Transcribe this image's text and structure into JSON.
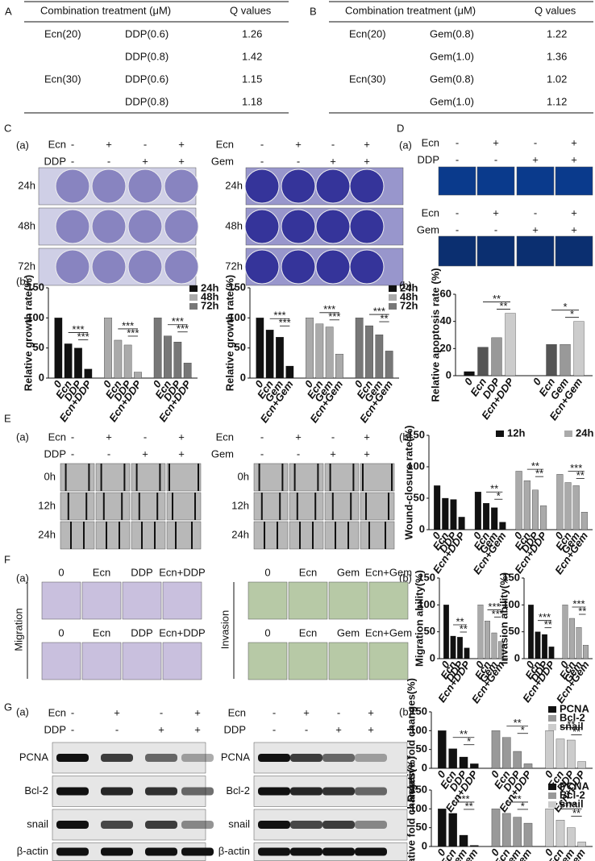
{
  "panels": {
    "A": {
      "label": "A",
      "table": {
        "headers": [
          "Combination treatment (μM)",
          "Q values"
        ],
        "rows": [
          [
            "Ecn(20)",
            "DDP(0.6)",
            1.26
          ],
          [
            null,
            "DDP(0.8)",
            1.42
          ],
          [
            "Ecn(30)",
            "DDP(0.6)",
            1.15
          ],
          [
            null,
            "DDP(0.8)",
            1.18
          ]
        ]
      }
    },
    "B": {
      "label": "B",
      "table": {
        "headers": [
          "Combination treatment (μM)",
          "Q values"
        ],
        "rows": [
          [
            "Ecn(20)",
            "Gem(0.8)",
            1.22
          ],
          [
            null,
            "Gem(1.0)",
            1.36
          ],
          [
            "Ecn(30)",
            "Gem(0.8)",
            1.02
          ],
          [
            null,
            "Gem(1.0)",
            1.12
          ]
        ]
      }
    },
    "C": {
      "label": "C",
      "sub_a": "(a)",
      "sub_b": "(b)",
      "treatments": [
        {
          "rows": [
            {
              "name": "Ecn",
              "marks": [
                "-",
                "+",
                "-",
                "+"
              ]
            },
            {
              "name": "DDP",
              "marks": [
                "-",
                "-",
                "+",
                "+"
              ]
            }
          ],
          "times": [
            "24h",
            "48h",
            "72h"
          ]
        },
        {
          "rows": [
            {
              "name": "Ecn",
              "marks": [
                "-",
                "+",
                "-",
                "+"
              ]
            },
            {
              "name": "Gem",
              "marks": [
                "-",
                "-",
                "+",
                "+"
              ]
            }
          ],
          "times": [
            "24h",
            "48h",
            "72h"
          ]
        }
      ],
      "charts": [
        {
          "y_label": "Relative growth rate(%)",
          "ylim": [
            0,
            150
          ],
          "yticks": [
            0,
            50,
            100,
            150
          ],
          "legend": [
            {
              "name": "24h",
              "color": "#111"
            },
            {
              "name": "48h",
              "color": "#aaa"
            },
            {
              "name": "72h",
              "color": "#777"
            }
          ],
          "groups": [
            {
              "color": "#111",
              "categories": [
                "0",
                "Ecn",
                "DDP",
                "Ecn+DDP"
              ],
              "values": [
                100,
                57,
                50,
                15
              ],
              "sig": [
                "***",
                "***"
              ]
            },
            {
              "color": "#aaa",
              "categories": [
                "0",
                "Ecn",
                "DDP",
                "Ecn+DDP"
              ],
              "values": [
                100,
                63,
                55,
                10
              ],
              "sig": [
                "***",
                "***"
              ]
            },
            {
              "color": "#777",
              "categories": [
                "0",
                "Ecn",
                "DDP",
                "Ecn+DDP"
              ],
              "values": [
                100,
                70,
                60,
                25
              ],
              "sig": [
                "***",
                "***"
              ]
            }
          ]
        },
        {
          "y_label": "Relative growth rate(%)",
          "ylim": [
            0,
            150
          ],
          "yticks": [
            0,
            50,
            100,
            150
          ],
          "legend": [
            {
              "name": "24h",
              "color": "#111"
            },
            {
              "name": "48h",
              "color": "#aaa"
            },
            {
              "name": "72h",
              "color": "#777"
            }
          ],
          "groups": [
            {
              "color": "#111",
              "categories": [
                "0",
                "Ecn",
                "Gem",
                "Ecn+Gem"
              ],
              "values": [
                100,
                80,
                68,
                20
              ],
              "sig": [
                "***",
                "***"
              ]
            },
            {
              "color": "#aaa",
              "categories": [
                "0",
                "Ecn",
                "Gem",
                "Ecn+Gem"
              ],
              "values": [
                100,
                90,
                85,
                40
              ],
              "sig": [
                "***",
                "***"
              ]
            },
            {
              "color": "#777",
              "categories": [
                "0",
                "Ecn",
                "Gem",
                "Ecn+Gem"
              ],
              "values": [
                100,
                87,
                72,
                45
              ],
              "sig": [
                "***",
                "**"
              ]
            }
          ]
        }
      ]
    },
    "D": {
      "label": "D",
      "sub_a": "(a)",
      "sub_b": "(b)",
      "treatments": [
        {
          "rows": [
            {
              "name": "Ecn",
              "marks": [
                "-",
                "+",
                "-",
                "+"
              ]
            },
            {
              "name": "DDP",
              "marks": [
                "-",
                "-",
                "+",
                "+"
              ]
            }
          ]
        },
        {
          "rows": [
            {
              "name": "Ecn",
              "marks": [
                "-",
                "+",
                "-",
                "+"
              ]
            },
            {
              "name": "Gem",
              "marks": [
                "-",
                "-",
                "+",
                "+"
              ]
            }
          ]
        }
      ],
      "charts": [
        {
          "y_label": "Relative apoptosis rate (%)",
          "ylim": [
            0,
            60
          ],
          "yticks": [
            0,
            20,
            40,
            60
          ],
          "groups": [
            {
              "colors": [
                "#111",
                "#555",
                "#999",
                "#ccc"
              ],
              "categories": [
                "0",
                "Ecn",
                "DDP",
                "Ecn+DDP"
              ],
              "values": [
                3,
                21,
                28,
                46
              ],
              "sig": [
                "**",
                "**"
              ]
            },
            {
              "colors": [
                "#111",
                "#555",
                "#999",
                "#ccc"
              ],
              "categories": [
                "0",
                "Ecn",
                "Gem",
                "Ecn+Gem"
              ],
              "values": [
                0,
                23,
                23,
                40
              ],
              "sig": [
                "*",
                "*"
              ]
            }
          ]
        }
      ]
    },
    "E": {
      "label": "E",
      "sub_a": "(a)",
      "sub_b": "(b)",
      "treatments": [
        {
          "rows": [
            {
              "name": "Ecn",
              "marks": [
                "-",
                "+",
                "-",
                "+"
              ]
            },
            {
              "name": "DDP",
              "marks": [
                "-",
                "-",
                "+",
                "+"
              ]
            }
          ],
          "times": [
            "0h",
            "12h",
            "24h"
          ]
        },
        {
          "rows": [
            {
              "name": "Ecn",
              "marks": [
                "-",
                "+",
                "-",
                "+"
              ]
            },
            {
              "name": "Gem",
              "marks": [
                "-",
                "-",
                "+",
                "+"
              ]
            }
          ],
          "times": [
            "0h",
            "12h",
            "24h"
          ]
        }
      ],
      "charts": [
        {
          "y_label": "Wound-closure rate(%)",
          "ylim": [
            0,
            150
          ],
          "yticks": [
            0,
            50,
            100,
            150
          ],
          "legend": [
            {
              "name": "12h",
              "color": "#111"
            },
            {
              "name": "24h",
              "color": "#aaa"
            }
          ],
          "groups": [
            {
              "color": "#111",
              "categories": [
                "0",
                "Ecn",
                "DDP",
                "Ecn+DDP"
              ],
              "values": [
                70,
                50,
                48,
                20
              ],
              "sig": []
            },
            {
              "color": "#111",
              "categories": [
                "0",
                "Ecn",
                "Gem",
                "Ecn+Gem"
              ],
              "values": [
                60,
                42,
                35,
                12
              ],
              "sig": [
                "**",
                "*"
              ]
            },
            {
              "color": "#aaa",
              "categories": [
                "0",
                "Ecn",
                "DDP",
                "Ecn+DDP"
              ],
              "values": [
                93,
                78,
                63,
                38
              ],
              "sig": [
                "**",
                "**"
              ]
            },
            {
              "color": "#aaa",
              "categories": [
                "0",
                "Ecn",
                "Gem",
                "Ecn+Gem"
              ],
              "values": [
                88,
                75,
                70,
                28
              ],
              "sig": [
                "***",
                "**"
              ]
            }
          ]
        }
      ]
    },
    "F": {
      "label": "F",
      "sub_a": "(a)",
      "sub_b": "(b)",
      "images": [
        {
          "labels": [
            "0",
            "Ecn",
            "DDP",
            "Ecn+DDP"
          ],
          "side": "Migration"
        },
        {
          "labels": [
            "0",
            "Ecn",
            "Gem",
            "Ecn+Gem"
          ],
          "side": "Invasion"
        }
      ],
      "charts": [
        {
          "y_label": "Migration ability(%)",
          "ylim": [
            0,
            150
          ],
          "yticks": [
            0,
            50,
            100,
            150
          ],
          "groups": [
            {
              "color": "#111",
              "categories": [
                "0",
                "Ecn",
                "DDP",
                "Ecn+DDP"
              ],
              "values": [
                100,
                42,
                40,
                20
              ],
              "sig": [
                "**",
                "**"
              ]
            },
            {
              "color": "#aaa",
              "categories": [
                "0",
                "Ecn",
                "Gem",
                "Ecn+Gem"
              ],
              "values": [
                100,
                70,
                48,
                32
              ],
              "sig": [
                "***",
                "***"
              ]
            }
          ]
        },
        {
          "y_label": "Invasion ability(%)",
          "ylim": [
            0,
            150
          ],
          "yticks": [
            0,
            50,
            100,
            150
          ],
          "groups": [
            {
              "color": "#111",
              "categories": [
                "0",
                "Ecn",
                "DDP",
                "Ecn+DDP"
              ],
              "values": [
                100,
                50,
                45,
                22
              ],
              "sig": [
                "***",
                "**"
              ]
            },
            {
              "color": "#aaa",
              "categories": [
                "0",
                "Ecn",
                "Gem",
                "Ecn+Gem"
              ],
              "values": [
                100,
                75,
                58,
                25
              ],
              "sig": [
                "***",
                "**"
              ]
            }
          ]
        }
      ]
    },
    "G": {
      "label": "G",
      "sub_a": "(a)",
      "sub_b": "(b)",
      "treatments": [
        {
          "rows": [
            {
              "name": "Ecn",
              "marks": [
                "-",
                "+",
                "-",
                "+"
              ]
            },
            {
              "name": "DDP",
              "marks": [
                "-",
                "-",
                "+",
                "+"
              ]
            }
          ],
          "blots": [
            "PCNA",
            "Bcl-2",
            "snail",
            "β-actin"
          ]
        },
        {
          "rows": [
            {
              "name": "Ecn",
              "marks": [
                "-",
                "+",
                "-",
                "+"
              ]
            },
            {
              "name": "DDP",
              "marks": [
                "-",
                "-",
                "+",
                "+"
              ]
            }
          ],
          "blots": [
            "PCNA",
            "Bcl-2",
            "snail",
            "β-actin"
          ]
        }
      ],
      "charts": [
        {
          "y_label": "Relative fold changes(%)",
          "ylim": [
            0,
            150
          ],
          "yticks": [
            0,
            50,
            100,
            150
          ],
          "legend": [
            {
              "name": "PCNA",
              "color": "#111"
            },
            {
              "name": "Bcl-2",
              "color": "#999"
            },
            {
              "name": "snail",
              "color": "#ccc"
            }
          ],
          "groups": [
            {
              "color": "#111",
              "categories": [
                "0",
                "Ecn",
                "DDP",
                "Ecn+DDP"
              ],
              "values": [
                100,
                52,
                30,
                12
              ],
              "sig": [
                "**",
                "*"
              ]
            },
            {
              "color": "#999",
              "categories": [
                "0",
                "Ecn",
                "DDP",
                "Ecn+DDP"
              ],
              "values": [
                100,
                82,
                45,
                12
              ],
              "sig": [
                "**",
                "*"
              ]
            },
            {
              "color": "#ccc",
              "categories": [
                "0",
                "Ecn",
                "DDP",
                "Ecn+DDP"
              ],
              "values": [
                100,
                78,
                75,
                18
              ],
              "sig": [
                "**",
                "**"
              ]
            }
          ]
        },
        {
          "y_label": "Relative fold changes(%)",
          "ylim": [
            0,
            150
          ],
          "yticks": [
            0,
            50,
            100,
            150
          ],
          "legend": [
            {
              "name": "PCNA",
              "color": "#111"
            },
            {
              "name": "Bcl-2",
              "color": "#999"
            },
            {
              "name": "snail",
              "color": "#ccc"
            }
          ],
          "groups": [
            {
              "color": "#111",
              "categories": [
                "0",
                "Ecn",
                "Gem",
                "Ecn+Gem"
              ],
              "values": [
                100,
                88,
                30,
                3
              ],
              "sig": [
                "***",
                "**"
              ]
            },
            {
              "color": "#999",
              "categories": [
                "0",
                "Ecn",
                "Gem",
                "Ecn+Gem"
              ],
              "values": [
                100,
                88,
                78,
                62
              ],
              "sig": [
                "**",
                "*"
              ]
            },
            {
              "color": "#ccc",
              "categories": [
                "0",
                "Ecn",
                "Gem",
                "Ecn+Gem"
              ],
              "values": [
                100,
                70,
                50,
                12
              ],
              "sig": [
                "***",
                "**"
              ]
            }
          ]
        }
      ]
    }
  }
}
